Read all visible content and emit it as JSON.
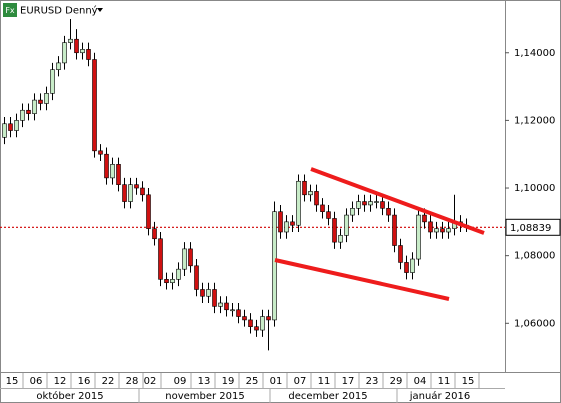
{
  "chart_data": {
    "type": "candlestick",
    "title": "EURUSD Denný",
    "icon_text": "Fx",
    "categories": [
      null,
      "15",
      null,
      null,
      null,
      "06",
      null,
      null,
      null,
      "12",
      null,
      null,
      null,
      "16",
      null,
      null,
      null,
      "22",
      null,
      null,
      null,
      "28",
      null,
      null,
      "02",
      null,
      null,
      null,
      null,
      "09",
      null,
      null,
      null,
      "13",
      null,
      null,
      null,
      "19",
      null,
      null,
      null,
      "25",
      null,
      null,
      null,
      "01",
      null,
      null,
      null,
      "07",
      null,
      null,
      null,
      "11",
      null,
      null,
      null,
      "17",
      null,
      null,
      null,
      "23",
      null,
      null,
      null,
      "29",
      null,
      null,
      null,
      "04",
      null,
      null,
      null,
      "11",
      null,
      null,
      null,
      "15"
    ],
    "months": [
      "október 2015",
      "november 2015",
      "december 2015",
      "január 2016"
    ],
    "open": [
      1.115,
      1.119,
      1.117,
      1.12,
      1.123,
      1.122,
      1.126,
      1.125,
      1.128,
      1.135,
      1.137,
      1.143,
      1.144,
      1.14,
      1.141,
      1.138,
      1.111,
      1.11,
      1.103,
      1.107,
      1.101,
      1.096,
      1.101,
      1.1,
      1.098,
      1.088,
      1.085,
      1.073,
      1.072,
      1.073,
      1.076,
      1.082,
      1.077,
      1.07,
      1.068,
      1.07,
      1.065,
      1.066,
      1.064,
      1.064,
      1.062,
      1.061,
      1.059,
      1.058,
      1.062,
      1.061,
      1.093,
      1.087,
      1.09,
      1.089,
      1.102,
      1.098,
      1.099,
      1.095,
      1.093,
      1.091,
      1.084,
      1.086,
      1.092,
      1.094,
      1.096,
      1.095,
      1.096,
      1.096,
      1.094,
      1.092,
      1.083,
      1.078,
      1.075,
      1.079,
      1.092,
      1.09,
      1.087,
      1.088,
      1.087,
      1.088,
      1.09,
      1.089
    ],
    "high": [
      1.121,
      1.121,
      1.122,
      1.125,
      1.125,
      1.128,
      1.128,
      1.13,
      1.137,
      1.139,
      1.145,
      1.15,
      1.147,
      1.143,
      1.143,
      1.14,
      1.113,
      1.112,
      1.109,
      1.109,
      1.103,
      1.103,
      1.103,
      1.102,
      1.1,
      1.09,
      1.087,
      1.075,
      1.075,
      1.078,
      1.084,
      1.084,
      1.079,
      1.072,
      1.072,
      1.072,
      1.068,
      1.068,
      1.066,
      1.066,
      1.064,
      1.063,
      1.061,
      1.064,
      1.064,
      1.096,
      1.095,
      1.092,
      1.092,
      1.104,
      1.104,
      1.101,
      1.101,
      1.097,
      1.095,
      1.093,
      1.088,
      1.094,
      1.096,
      1.098,
      1.098,
      1.098,
      1.098,
      1.098,
      1.096,
      1.094,
      1.085,
      1.08,
      1.081,
      1.094,
      1.094,
      1.092,
      1.09,
      1.09,
      1.09,
      1.098,
      1.092,
      1.091
    ],
    "low": [
      1.113,
      1.115,
      1.115,
      1.118,
      1.12,
      1.12,
      1.123,
      1.123,
      1.126,
      1.133,
      1.135,
      1.141,
      1.138,
      1.138,
      1.136,
      1.109,
      1.108,
      1.101,
      1.101,
      1.099,
      1.094,
      1.094,
      1.098,
      1.096,
      1.086,
      1.083,
      1.071,
      1.07,
      1.07,
      1.071,
      1.074,
      1.075,
      1.068,
      1.066,
      1.066,
      1.063,
      1.063,
      1.062,
      1.062,
      1.06,
      1.059,
      1.057,
      1.056,
      1.056,
      1.052,
      1.059,
      1.085,
      1.085,
      1.087,
      1.087,
      1.096,
      1.096,
      1.093,
      1.091,
      1.089,
      1.082,
      1.082,
      1.084,
      1.09,
      1.092,
      1.093,
      1.093,
      1.094,
      1.092,
      1.09,
      1.081,
      1.076,
      1.073,
      1.073,
      1.077,
      1.088,
      1.085,
      1.085,
      1.085,
      1.085,
      1.086,
      1.087,
      1.087
    ],
    "close": [
      1.119,
      1.117,
      1.12,
      1.123,
      1.122,
      1.126,
      1.125,
      1.128,
      1.135,
      1.137,
      1.143,
      1.144,
      1.14,
      1.141,
      1.138,
      1.111,
      1.11,
      1.103,
      1.107,
      1.101,
      1.096,
      1.101,
      1.1,
      1.098,
      1.088,
      1.085,
      1.073,
      1.072,
      1.073,
      1.076,
      1.082,
      1.077,
      1.07,
      1.068,
      1.07,
      1.065,
      1.066,
      1.064,
      1.064,
      1.062,
      1.061,
      1.059,
      1.058,
      1.062,
      1.061,
      1.093,
      1.087,
      1.09,
      1.089,
      1.102,
      1.098,
      1.099,
      1.095,
      1.093,
      1.091,
      1.084,
      1.086,
      1.092,
      1.094,
      1.096,
      1.095,
      1.096,
      1.096,
      1.094,
      1.092,
      1.083,
      1.078,
      1.075,
      1.079,
      1.092,
      1.09,
      1.087,
      1.088,
      1.087,
      1.088,
      1.09,
      1.089,
      1.0884
    ],
    "up_color": "#c8ecc8",
    "down_color": "#d01010",
    "ylim": [
      1.0456,
      1.1556
    ],
    "yticks": [
      {
        "value": 1.06,
        "label": "1,06000"
      },
      {
        "value": 1.08,
        "label": "1,08000"
      },
      {
        "value": 1.1,
        "label": "1,10000"
      },
      {
        "value": 1.12,
        "label": "1,12000"
      },
      {
        "value": 1.14,
        "label": "1,14000"
      }
    ],
    "last_price": {
      "value": 1.08839,
      "label": "1,08839"
    },
    "last_price_color": "#d00000"
  }
}
